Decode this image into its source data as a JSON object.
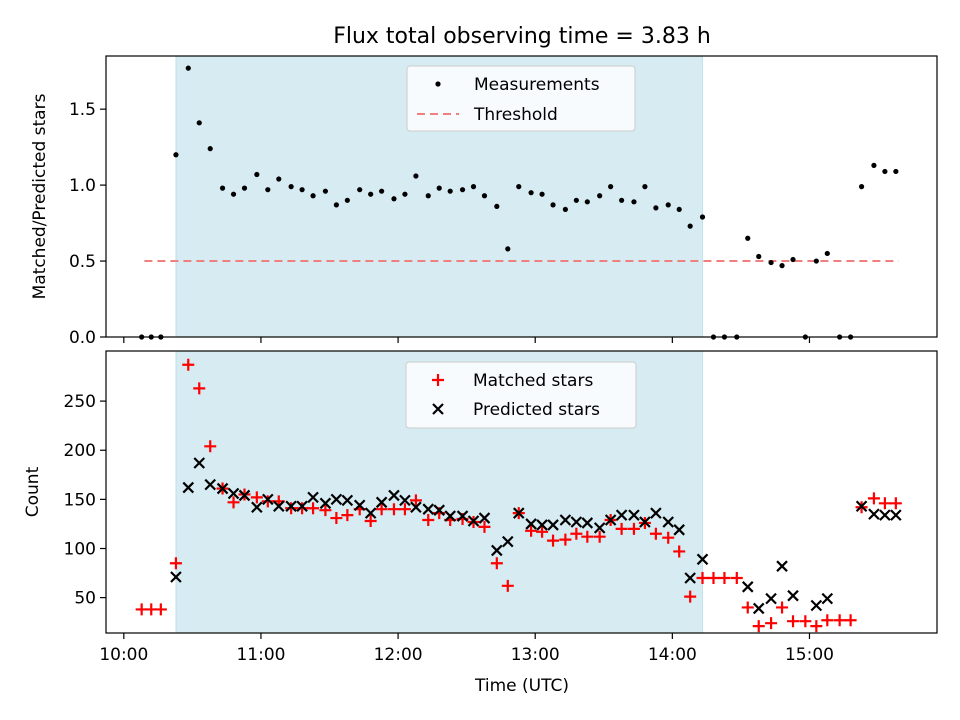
{
  "figure": {
    "title": "Flux total observing time = 3.83 h",
    "xlabel": "Time (UTC)",
    "x_range_hours": [
      9.87,
      15.93
    ],
    "x_ticks": [
      {
        "h": 10,
        "label": "10:00"
      },
      {
        "h": 11,
        "label": "11:00"
      },
      {
        "h": 12,
        "label": "12:00"
      },
      {
        "h": 13,
        "label": "13:00"
      },
      {
        "h": 14,
        "label": "14:00"
      },
      {
        "h": 15,
        "label": "15:00"
      }
    ],
    "shaded_interval_hours": [
      10.38,
      14.22
    ],
    "colors": {
      "shade": "#add8e6",
      "threshold": "#f08080",
      "matched": "#ff0000",
      "predicted": "#000000",
      "measurements": "#000000"
    }
  },
  "chart_data": [
    {
      "type": "scatter",
      "ylabel": "Matched/Predicted stars",
      "ylim": [
        0,
        1.85
      ],
      "y_ticks": [
        {
          "v": 0,
          "label": "0.0"
        },
        {
          "v": 0.5,
          "label": "0.5"
        },
        {
          "v": 1.0,
          "label": "1.0"
        },
        {
          "v": 1.5,
          "label": "1.5"
        }
      ],
      "legend": {
        "position": "top-center",
        "entries": [
          {
            "label": "Measurements",
            "marker": "dot"
          },
          {
            "label": "Threshold",
            "marker": "dashed-line"
          }
        ]
      },
      "threshold": {
        "value": 0.5,
        "x": [
          10.15,
          15.65
        ]
      },
      "series": [
        {
          "name": "Measurements",
          "points": [
            [
              10.13,
              0.0
            ],
            [
              10.2,
              0.0
            ],
            [
              10.27,
              0.0
            ],
            [
              10.38,
              1.2
            ],
            [
              10.47,
              1.77
            ],
            [
              10.55,
              1.41
            ],
            [
              10.63,
              1.24
            ],
            [
              10.72,
              0.98
            ],
            [
              10.8,
              0.94
            ],
            [
              10.88,
              0.98
            ],
            [
              10.97,
              1.07
            ],
            [
              11.05,
              0.97
            ],
            [
              11.13,
              1.04
            ],
            [
              11.22,
              0.99
            ],
            [
              11.3,
              0.97
            ],
            [
              11.38,
              0.93
            ],
            [
              11.47,
              0.96
            ],
            [
              11.55,
              0.87
            ],
            [
              11.63,
              0.9
            ],
            [
              11.72,
              0.97
            ],
            [
              11.8,
              0.94
            ],
            [
              11.88,
              0.96
            ],
            [
              11.97,
              0.91
            ],
            [
              12.05,
              0.94
            ],
            [
              12.13,
              1.06
            ],
            [
              12.22,
              0.93
            ],
            [
              12.3,
              0.98
            ],
            [
              12.38,
              0.96
            ],
            [
              12.47,
              0.97
            ],
            [
              12.55,
              0.99
            ],
            [
              12.63,
              0.93
            ],
            [
              12.72,
              0.86
            ],
            [
              12.8,
              0.58
            ],
            [
              12.88,
              0.99
            ],
            [
              12.97,
              0.95
            ],
            [
              13.05,
              0.94
            ],
            [
              13.13,
              0.87
            ],
            [
              13.22,
              0.84
            ],
            [
              13.3,
              0.9
            ],
            [
              13.38,
              0.89
            ],
            [
              13.47,
              0.93
            ],
            [
              13.55,
              0.99
            ],
            [
              13.63,
              0.9
            ],
            [
              13.72,
              0.89
            ],
            [
              13.8,
              0.99
            ],
            [
              13.88,
              0.85
            ],
            [
              13.97,
              0.87
            ],
            [
              14.05,
              0.84
            ],
            [
              14.13,
              0.73
            ],
            [
              14.22,
              0.79
            ],
            [
              14.3,
              0.0
            ],
            [
              14.38,
              0.0
            ],
            [
              14.47,
              0.0
            ],
            [
              14.55,
              0.65
            ],
            [
              14.63,
              0.53
            ],
            [
              14.72,
              0.49
            ],
            [
              14.8,
              0.47
            ],
            [
              14.88,
              0.51
            ],
            [
              14.97,
              0.0
            ],
            [
              15.05,
              0.5
            ],
            [
              15.13,
              0.55
            ],
            [
              15.22,
              0.0
            ],
            [
              15.3,
              0.0
            ],
            [
              15.38,
              0.99
            ],
            [
              15.47,
              1.13
            ],
            [
              15.55,
              1.09
            ],
            [
              15.63,
              1.09
            ]
          ]
        }
      ]
    },
    {
      "type": "scatter",
      "ylabel": "Count",
      "ylim": [
        14,
        301
      ],
      "y_ticks": [
        {
          "v": 50,
          "label": "50"
        },
        {
          "v": 100,
          "label": "100"
        },
        {
          "v": 150,
          "label": "150"
        },
        {
          "v": 200,
          "label": "200"
        },
        {
          "v": 250,
          "label": "250"
        }
      ],
      "legend": {
        "position": "top-center",
        "entries": [
          {
            "label": "Matched stars",
            "marker": "plus"
          },
          {
            "label": "Predicted stars",
            "marker": "x"
          }
        ]
      },
      "series": [
        {
          "name": "Matched stars",
          "points": [
            [
              10.13,
              38
            ],
            [
              10.2,
              38
            ],
            [
              10.27,
              38
            ],
            [
              10.38,
              85
            ],
            [
              10.47,
              287
            ],
            [
              10.55,
              263
            ],
            [
              10.63,
              204
            ],
            [
              10.72,
              161
            ],
            [
              10.8,
              147
            ],
            [
              10.88,
              155
            ],
            [
              10.97,
              152
            ],
            [
              11.05,
              148
            ],
            [
              11.13,
              148
            ],
            [
              11.22,
              141
            ],
            [
              11.3,
              141
            ],
            [
              11.38,
              141
            ],
            [
              11.47,
              139
            ],
            [
              11.55,
              131
            ],
            [
              11.63,
              134
            ],
            [
              11.72,
              140
            ],
            [
              11.8,
              128
            ],
            [
              11.88,
              140
            ],
            [
              11.97,
              140
            ],
            [
              12.05,
              140
            ],
            [
              12.13,
              149
            ],
            [
              12.22,
              129
            ],
            [
              12.3,
              136
            ],
            [
              12.38,
              129
            ],
            [
              12.47,
              130
            ],
            [
              12.55,
              127
            ],
            [
              12.63,
              122
            ],
            [
              12.72,
              85
            ],
            [
              12.8,
              62
            ],
            [
              12.88,
              136
            ],
            [
              12.97,
              118
            ],
            [
              13.05,
              117
            ],
            [
              13.13,
              108
            ],
            [
              13.22,
              109
            ],
            [
              13.3,
              115
            ],
            [
              13.38,
              112
            ],
            [
              13.47,
              112
            ],
            [
              13.55,
              129
            ],
            [
              13.63,
              120
            ],
            [
              13.72,
              120
            ],
            [
              13.8,
              126
            ],
            [
              13.88,
              115
            ],
            [
              13.97,
              111
            ],
            [
              14.05,
              97
            ],
            [
              14.13,
              51
            ],
            [
              14.22,
              70
            ],
            [
              14.3,
              70
            ],
            [
              14.38,
              70
            ],
            [
              14.47,
              70
            ],
            [
              14.55,
              40
            ],
            [
              14.63,
              21
            ],
            [
              14.72,
              24
            ],
            [
              14.8,
              40
            ],
            [
              14.88,
              26
            ],
            [
              14.97,
              26
            ],
            [
              15.05,
              21
            ],
            [
              15.13,
              27
            ],
            [
              15.22,
              27
            ],
            [
              15.3,
              27
            ],
            [
              15.38,
              142
            ],
            [
              15.47,
              151
            ],
            [
              15.55,
              146
            ],
            [
              15.63,
              146
            ]
          ]
        },
        {
          "name": "Predicted stars",
          "points": [
            [
              10.38,
              71
            ],
            [
              10.47,
              162
            ],
            [
              10.55,
              187
            ],
            [
              10.63,
              165
            ],
            [
              10.72,
              161
            ],
            [
              10.8,
              156
            ],
            [
              10.88,
              154
            ],
            [
              10.97,
              142
            ],
            [
              11.05,
              150
            ],
            [
              11.13,
              143
            ],
            [
              11.22,
              143
            ],
            [
              11.3,
              143
            ],
            [
              11.38,
              152
            ],
            [
              11.47,
              146
            ],
            [
              11.55,
              150
            ],
            [
              11.63,
              149
            ],
            [
              11.72,
              144
            ],
            [
              11.8,
              136
            ],
            [
              11.88,
              147
            ],
            [
              11.97,
              154
            ],
            [
              12.05,
              149
            ],
            [
              12.13,
              142
            ],
            [
              12.22,
              140
            ],
            [
              12.3,
              139
            ],
            [
              12.38,
              133
            ],
            [
              12.47,
              133
            ],
            [
              12.55,
              128
            ],
            [
              12.63,
              131
            ],
            [
              12.72,
              98
            ],
            [
              12.8,
              107
            ],
            [
              12.88,
              136
            ],
            [
              12.97,
              125
            ],
            [
              13.05,
              124
            ],
            [
              13.13,
              124
            ],
            [
              13.22,
              129
            ],
            [
              13.3,
              127
            ],
            [
              13.38,
              126
            ],
            [
              13.47,
              121
            ],
            [
              13.55,
              129
            ],
            [
              13.63,
              134
            ],
            [
              13.72,
              134
            ],
            [
              13.8,
              127
            ],
            [
              13.88,
              136
            ],
            [
              13.97,
              127
            ],
            [
              14.05,
              119
            ],
            [
              14.13,
              70
            ],
            [
              14.22,
              89
            ],
            [
              14.55,
              61
            ],
            [
              14.63,
              39
            ],
            [
              14.72,
              49
            ],
            [
              14.8,
              82
            ],
            [
              14.88,
              52
            ],
            [
              15.05,
              42
            ],
            [
              15.13,
              49
            ],
            [
              15.38,
              143
            ],
            [
              15.47,
              135
            ],
            [
              15.55,
              134
            ],
            [
              15.63,
              134
            ]
          ]
        }
      ]
    }
  ]
}
